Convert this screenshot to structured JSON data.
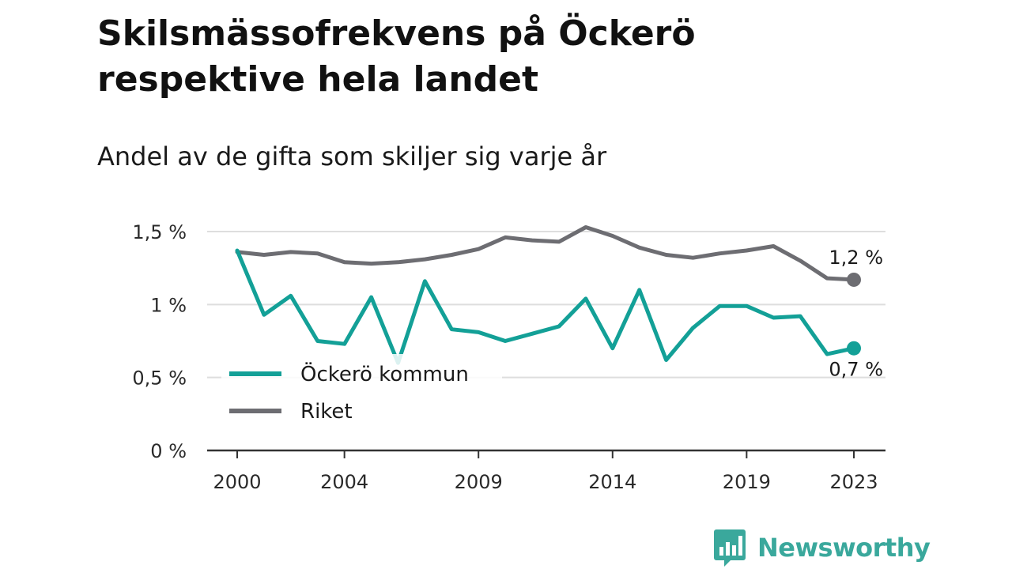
{
  "title": "Skilsmässofrekvens på Öckerö respektive hela landet",
  "subtitle": "Andel av de gifta som skiljer sig varje år",
  "brand": {
    "name": "Newsworthy",
    "logo_icon": "bar-chart-speech-bubble-icon",
    "color": "#3aa89c"
  },
  "chart_data": {
    "type": "line",
    "x": [
      2000,
      2001,
      2002,
      2003,
      2004,
      2005,
      2006,
      2007,
      2008,
      2009,
      2010,
      2011,
      2012,
      2013,
      2014,
      2015,
      2016,
      2017,
      2018,
      2019,
      2020,
      2021,
      2022,
      2023
    ],
    "x_tick_values": [
      2000,
      2004,
      2009,
      2014,
      2019,
      2023
    ],
    "x_tick_labels": [
      "2000",
      "2004",
      "2009",
      "2014",
      "2019",
      "2023"
    ],
    "ylim": [
      0,
      1.5
    ],
    "y_tick_values": [
      0,
      0.5,
      1,
      1.5
    ],
    "y_tick_labels": [
      "0 %",
      "0,5 %",
      "1 %",
      "1,5 %"
    ],
    "grid": true,
    "legend": {
      "placement": "lower-left"
    },
    "series": [
      {
        "name": "Öckerö kommun",
        "color": "#13a097",
        "values": [
          1.37,
          0.93,
          1.06,
          0.75,
          0.73,
          1.05,
          0.6,
          1.16,
          0.83,
          0.81,
          0.75,
          0.8,
          0.85,
          1.04,
          0.7,
          1.1,
          0.62,
          0.84,
          0.99,
          0.99,
          0.91,
          0.92,
          0.66,
          0.7
        ],
        "end_label": "0,7 %"
      },
      {
        "name": "Riket",
        "color": "#6d6d72",
        "values": [
          1.36,
          1.34,
          1.36,
          1.35,
          1.29,
          1.28,
          1.29,
          1.31,
          1.34,
          1.38,
          1.46,
          1.44,
          1.43,
          1.53,
          1.47,
          1.39,
          1.34,
          1.32,
          1.35,
          1.37,
          1.4,
          1.3,
          1.18,
          1.17
        ],
        "end_label": "1,2 %"
      }
    ]
  }
}
